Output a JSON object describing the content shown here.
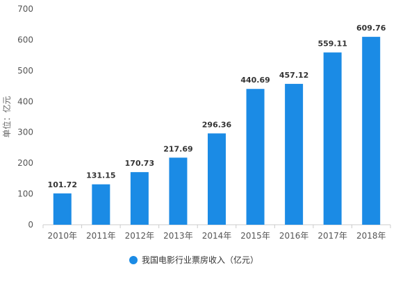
{
  "chart_data": {
    "type": "bar",
    "categories": [
      "2010年",
      "2011年",
      "2012年",
      "2013年",
      "2014年",
      "2015年",
      "2016年",
      "2017年",
      "2018年"
    ],
    "series": [
      {
        "name": "我国电影行业票房收入（亿元）",
        "values": [
          101.72,
          131.15,
          170.73,
          217.69,
          296.36,
          440.69,
          457.12,
          559.11,
          609.76
        ],
        "labels": [
          "101.72",
          "131.15",
          "170.73",
          "217.69",
          "296.36",
          "440.69",
          "457.12",
          "559.11",
          "609.76"
        ]
      }
    ],
    "ylabel": "单位：亿元",
    "ylim": [
      0,
      700
    ],
    "yticks": [
      "0",
      "100",
      "200",
      "300",
      "400",
      "500",
      "600",
      "700"
    ],
    "grid": false,
    "legend_position": "bottom-center",
    "colors": {
      "bar": "#1b8be5",
      "axis": "#cccccc"
    }
  }
}
